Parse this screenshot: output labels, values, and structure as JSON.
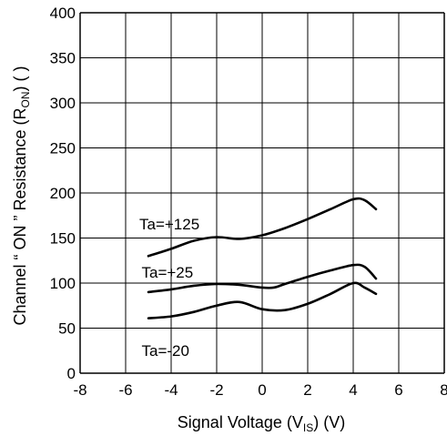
{
  "chart_data": {
    "type": "line",
    "xlabel_main": "Signal Voltage (V",
    "xlabel_sub": "IS",
    "xlabel_end": ") (V)",
    "ylabel_main": "Channel  “ ON ” Resistance (R",
    "ylabel_sub": "ON",
    "ylabel_end": ") (  )",
    "xlim": [
      -8,
      8
    ],
    "ylim": [
      0,
      400
    ],
    "x_ticks": [
      -8,
      -6,
      -4,
      -2,
      0,
      2,
      4,
      6,
      8
    ],
    "y_ticks": [
      0,
      50,
      100,
      150,
      200,
      250,
      300,
      350,
      400
    ],
    "grid": true,
    "line_color": "#000000",
    "series": [
      {
        "name": "Ta=+125",
        "x": [
          -5,
          -4,
          -3,
          -2,
          -1,
          0,
          1,
          2,
          3,
          4,
          4.5,
          5
        ],
        "y": [
          130,
          138,
          147,
          151,
          149,
          153,
          161,
          171,
          182,
          193,
          192,
          182
        ]
      },
      {
        "name": "Ta=+25",
        "x": [
          -5,
          -4,
          -3,
          -2,
          -1,
          0,
          0.5,
          1,
          2,
          3,
          4,
          4.5,
          5
        ],
        "y": [
          90,
          93,
          97,
          99,
          98,
          95,
          95,
          99,
          107,
          114,
          120,
          118,
          105
        ]
      },
      {
        "name": "Ta=-20",
        "x": [
          -5,
          -4,
          -3,
          -2,
          -1,
          0,
          1,
          2,
          3,
          4,
          4.5,
          5
        ],
        "y": [
          61,
          63,
          68,
          75,
          79,
          71,
          70,
          77,
          88,
          100,
          95,
          88
        ]
      }
    ]
  }
}
